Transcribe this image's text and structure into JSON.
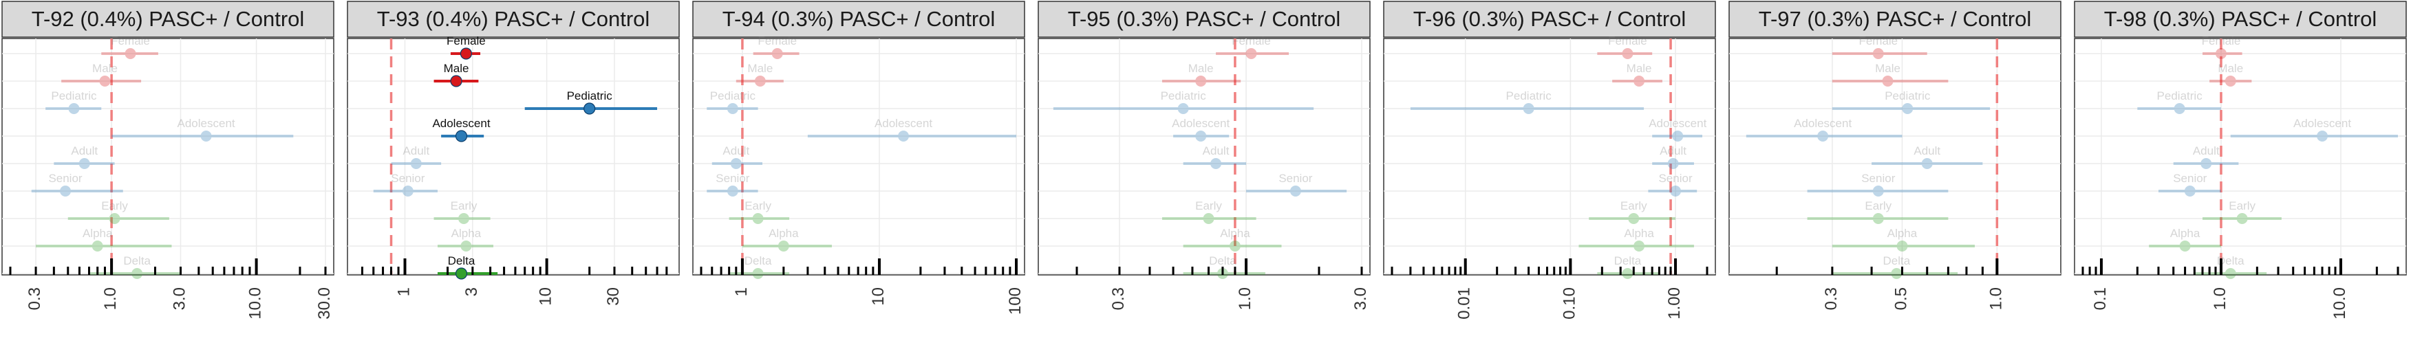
{
  "colors": {
    "sex": "#d7191c",
    "age": "#2c7bb6",
    "variant": "#33a02c",
    "reference_line": "#f08080",
    "strip_bg": "#d9d9d9",
    "grid": "#ebebeb"
  },
  "chart_data": [
    {
      "type": "scatter",
      "title": "T-92 (0.4%) PASC+ / Control",
      "x_scale": "log",
      "xlim": [
        0.2,
        30
      ],
      "tick_labels": [
        "0.3",
        "1.0",
        "3.0",
        "10.0",
        "30.0"
      ],
      "tick_values": [
        0.3,
        1,
        3,
        10,
        30
      ],
      "reference_x": 1,
      "points": [
        {
          "label": "Female",
          "group": "sex",
          "value": 1.35,
          "lo": 0.85,
          "hi": 2.1,
          "highlight": false
        },
        {
          "label": "Male",
          "group": "sex",
          "value": 0.9,
          "lo": 0.45,
          "hi": 1.6,
          "highlight": false
        },
        {
          "label": "Pediatric",
          "group": "age",
          "value": 0.55,
          "lo": 0.35,
          "hi": 0.85,
          "highlight": false
        },
        {
          "label": "Adolescent",
          "group": "age",
          "value": 4.5,
          "lo": 1.0,
          "hi": 18.0,
          "highlight": false
        },
        {
          "label": "Adult",
          "group": "age",
          "value": 0.65,
          "lo": 0.4,
          "hi": 1.05,
          "highlight": false
        },
        {
          "label": "Senior",
          "group": "age",
          "value": 0.48,
          "lo": 0.28,
          "hi": 1.2,
          "highlight": false
        },
        {
          "label": "Early",
          "group": "variant",
          "value": 1.05,
          "lo": 0.5,
          "hi": 2.5,
          "highlight": false
        },
        {
          "label": "Alpha",
          "group": "variant",
          "value": 0.8,
          "lo": 0.3,
          "hi": 2.6,
          "highlight": false
        },
        {
          "label": "Delta",
          "group": "variant",
          "value": 1.5,
          "lo": 0.7,
          "hi": 3.0,
          "highlight": false
        }
      ]
    },
    {
      "type": "scatter",
      "title": "T-93 (0.4%) PASC+ / Control",
      "x_scale": "log",
      "xlim": [
        0.45,
        75
      ],
      "tick_labels": [
        "1",
        "3",
        "10",
        "30"
      ],
      "tick_values": [
        1,
        3,
        10,
        30
      ],
      "reference_x": 0.8,
      "points": [
        {
          "label": "Female",
          "group": "sex",
          "value": 2.7,
          "lo": 2.1,
          "hi": 3.4,
          "highlight": true
        },
        {
          "label": "Male",
          "group": "sex",
          "value": 2.3,
          "lo": 1.6,
          "hi": 3.3,
          "highlight": true
        },
        {
          "label": "Pediatric",
          "group": "age",
          "value": 20.0,
          "lo": 7.0,
          "hi": 60.0,
          "highlight": true
        },
        {
          "label": "Adolescent",
          "group": "age",
          "value": 2.5,
          "lo": 1.8,
          "hi": 3.6,
          "highlight": true
        },
        {
          "label": "Adult",
          "group": "age",
          "value": 1.2,
          "lo": 0.8,
          "hi": 1.8,
          "highlight": false
        },
        {
          "label": "Senior",
          "group": "age",
          "value": 1.05,
          "lo": 0.6,
          "hi": 1.7,
          "highlight": false
        },
        {
          "label": "Early",
          "group": "variant",
          "value": 2.6,
          "lo": 1.6,
          "hi": 4.0,
          "highlight": false
        },
        {
          "label": "Alpha",
          "group": "variant",
          "value": 2.7,
          "lo": 1.7,
          "hi": 4.2,
          "highlight": false
        },
        {
          "label": "Delta",
          "group": "variant",
          "value": 2.5,
          "lo": 1.7,
          "hi": 4.5,
          "highlight": true
        }
      ]
    },
    {
      "type": "scatter",
      "title": "T-94 (0.3%) PASC+ / Control",
      "x_scale": "log",
      "xlim": [
        0.5,
        100
      ],
      "tick_labels": [
        "1",
        "10",
        "100"
      ],
      "tick_values": [
        1,
        10,
        100
      ],
      "reference_x": 1,
      "points": [
        {
          "label": "Female",
          "group": "sex",
          "value": 1.8,
          "lo": 1.2,
          "hi": 2.6,
          "highlight": false
        },
        {
          "label": "Male",
          "group": "sex",
          "value": 1.35,
          "lo": 0.9,
          "hi": 2.0,
          "highlight": false
        },
        {
          "label": "Pediatric",
          "group": "age",
          "value": 0.85,
          "lo": 0.55,
          "hi": 1.3,
          "highlight": false
        },
        {
          "label": "Adolescent",
          "group": "age",
          "value": 15.0,
          "lo": 3.0,
          "hi": 100.0,
          "highlight": false
        },
        {
          "label": "Adult",
          "group": "age",
          "value": 0.9,
          "lo": 0.6,
          "hi": 1.4,
          "highlight": false
        },
        {
          "label": "Senior",
          "group": "age",
          "value": 0.85,
          "lo": 0.55,
          "hi": 1.3,
          "highlight": false
        },
        {
          "label": "Early",
          "group": "variant",
          "value": 1.3,
          "lo": 0.8,
          "hi": 2.2,
          "highlight": false
        },
        {
          "label": "Alpha",
          "group": "variant",
          "value": 2.0,
          "lo": 1.0,
          "hi": 4.5,
          "highlight": false
        },
        {
          "label": "Delta",
          "group": "variant",
          "value": 1.3,
          "lo": 0.8,
          "hi": 2.2,
          "highlight": false
        }
      ]
    },
    {
      "type": "scatter",
      "title": "T-95 (0.3%) PASC+ / Control",
      "x_scale": "log",
      "xlim": [
        0.15,
        3
      ],
      "tick_labels": [
        "0.3",
        "1.0",
        "3.0"
      ],
      "tick_values": [
        0.3,
        1,
        3
      ],
      "reference_x": 0.9,
      "points": [
        {
          "label": "Female",
          "group": "sex",
          "value": 1.05,
          "lo": 0.75,
          "hi": 1.5,
          "highlight": false
        },
        {
          "label": "Male",
          "group": "sex",
          "value": 0.65,
          "lo": 0.45,
          "hi": 0.95,
          "highlight": false
        },
        {
          "label": "Pediatric",
          "group": "age",
          "value": 0.55,
          "lo": 0.16,
          "hi": 1.9,
          "highlight": false
        },
        {
          "label": "Adolescent",
          "group": "age",
          "value": 0.65,
          "lo": 0.5,
          "hi": 0.85,
          "highlight": false
        },
        {
          "label": "Adult",
          "group": "age",
          "value": 0.75,
          "lo": 0.55,
          "hi": 1.0,
          "highlight": false
        },
        {
          "label": "Senior",
          "group": "age",
          "value": 1.6,
          "lo": 1.0,
          "hi": 2.6,
          "highlight": false
        },
        {
          "label": "Early",
          "group": "variant",
          "value": 0.7,
          "lo": 0.45,
          "hi": 1.1,
          "highlight": false
        },
        {
          "label": "Alpha",
          "group": "variant",
          "value": 0.9,
          "lo": 0.55,
          "hi": 1.4,
          "highlight": false
        },
        {
          "label": "Delta",
          "group": "variant",
          "value": 0.8,
          "lo": 0.55,
          "hi": 1.2,
          "highlight": false
        }
      ]
    },
    {
      "type": "scatter",
      "title": "T-96 (0.3%) PASC+ / Control",
      "x_scale": "log",
      "xlim": [
        0.002,
        2
      ],
      "tick_labels": [
        "0.01",
        "0.10",
        "1.00"
      ],
      "tick_values": [
        0.01,
        0.1,
        1
      ],
      "reference_x": 0.9,
      "points": [
        {
          "label": "Female",
          "group": "sex",
          "value": 0.35,
          "lo": 0.18,
          "hi": 0.6,
          "highlight": false
        },
        {
          "label": "Male",
          "group": "sex",
          "value": 0.45,
          "lo": 0.25,
          "hi": 0.75,
          "highlight": false
        },
        {
          "label": "Pediatric",
          "group": "age",
          "value": 0.04,
          "lo": 0.003,
          "hi": 0.5,
          "highlight": false
        },
        {
          "label": "Adolescent",
          "group": "age",
          "value": 1.05,
          "lo": 0.6,
          "hi": 1.8,
          "highlight": false
        },
        {
          "label": "Adult",
          "group": "age",
          "value": 0.95,
          "lo": 0.6,
          "hi": 1.5,
          "highlight": false
        },
        {
          "label": "Senior",
          "group": "age",
          "value": 1.0,
          "lo": 0.55,
          "hi": 1.6,
          "highlight": false
        },
        {
          "label": "Early",
          "group": "variant",
          "value": 0.4,
          "lo": 0.15,
          "hi": 1.0,
          "highlight": false
        },
        {
          "label": "Alpha",
          "group": "variant",
          "value": 0.45,
          "lo": 0.12,
          "hi": 1.5,
          "highlight": false
        },
        {
          "label": "Delta",
          "group": "variant",
          "value": 0.35,
          "lo": 0.18,
          "hi": 0.7,
          "highlight": false
        }
      ]
    },
    {
      "type": "scatter",
      "title": "T-97 (0.3%) PASC+ / Control",
      "x_scale": "log",
      "xlim": [
        0.15,
        1.5
      ],
      "tick_labels": [
        "0.3",
        "0.5",
        "1.0"
      ],
      "tick_values": [
        0.3,
        0.5,
        1
      ],
      "reference_x": 1,
      "points": [
        {
          "label": "Female",
          "group": "sex",
          "value": 0.42,
          "lo": 0.3,
          "hi": 0.6,
          "highlight": false
        },
        {
          "label": "Male",
          "group": "sex",
          "value": 0.45,
          "lo": 0.3,
          "hi": 0.7,
          "highlight": false
        },
        {
          "label": "Pediatric",
          "group": "age",
          "value": 0.52,
          "lo": 0.3,
          "hi": 0.95,
          "highlight": false
        },
        {
          "label": "Adolescent",
          "group": "age",
          "value": 0.28,
          "lo": 0.16,
          "hi": 0.5,
          "highlight": false
        },
        {
          "label": "Adult",
          "group": "age",
          "value": 0.6,
          "lo": 0.4,
          "hi": 0.9,
          "highlight": false
        },
        {
          "label": "Senior",
          "group": "age",
          "value": 0.42,
          "lo": 0.25,
          "hi": 0.7,
          "highlight": false
        },
        {
          "label": "Early",
          "group": "variant",
          "value": 0.42,
          "lo": 0.25,
          "hi": 0.7,
          "highlight": false
        },
        {
          "label": "Alpha",
          "group": "variant",
          "value": 0.5,
          "lo": 0.3,
          "hi": 0.85,
          "highlight": false
        },
        {
          "label": "Delta",
          "group": "variant",
          "value": 0.48,
          "lo": 0.3,
          "hi": 0.75,
          "highlight": false
        }
      ]
    },
    {
      "type": "scatter",
      "title": "T-98 (0.3%) PASC+ / Control",
      "x_scale": "log",
      "xlim": [
        0.07,
        30
      ],
      "tick_labels": [
        "0.1",
        "1.0",
        "10.0"
      ],
      "tick_values": [
        0.1,
        1,
        10
      ],
      "reference_x": 1,
      "points": [
        {
          "label": "Female",
          "group": "sex",
          "value": 1.0,
          "lo": 0.7,
          "hi": 1.5,
          "highlight": false
        },
        {
          "label": "Male",
          "group": "sex",
          "value": 1.2,
          "lo": 0.8,
          "hi": 1.8,
          "highlight": false
        },
        {
          "label": "Pediatric",
          "group": "age",
          "value": 0.45,
          "lo": 0.2,
          "hi": 1.0,
          "highlight": false
        },
        {
          "label": "Adolescent",
          "group": "age",
          "value": 7.0,
          "lo": 1.2,
          "hi": 30.0,
          "highlight": false
        },
        {
          "label": "Adult",
          "group": "age",
          "value": 0.75,
          "lo": 0.4,
          "hi": 1.4,
          "highlight": false
        },
        {
          "label": "Senior",
          "group": "age",
          "value": 0.55,
          "lo": 0.3,
          "hi": 1.0,
          "highlight": false
        },
        {
          "label": "Early",
          "group": "variant",
          "value": 1.5,
          "lo": 0.7,
          "hi": 3.2,
          "highlight": false
        },
        {
          "label": "Alpha",
          "group": "variant",
          "value": 0.5,
          "lo": 0.25,
          "hi": 1.0,
          "highlight": false
        },
        {
          "label": "Delta",
          "group": "variant",
          "value": 1.2,
          "lo": 0.6,
          "hi": 2.4,
          "highlight": false
        }
      ]
    }
  ]
}
